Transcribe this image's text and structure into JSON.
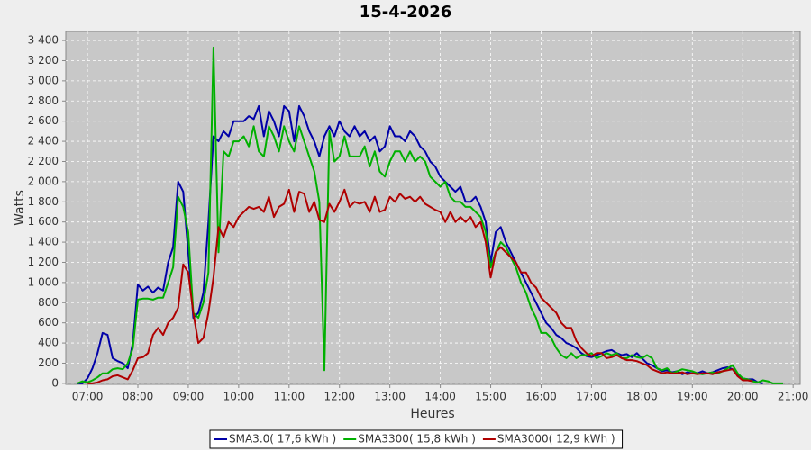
{
  "chart_data": {
    "type": "line",
    "title": "15-4-2026",
    "x_label": "Heures",
    "y_label": "Watts",
    "x": [
      6.8,
      6.9,
      7,
      7.1,
      7.2,
      7.3,
      7.4,
      7.5,
      7.6,
      7.7,
      7.8,
      7.9,
      8,
      8.1,
      8.2,
      8.3,
      8.4,
      8.5,
      8.6,
      8.7,
      8.8,
      8.9,
      9,
      9.1,
      9.2,
      9.3,
      9.4,
      9.5,
      9.6,
      9.7,
      9.8,
      9.9,
      10,
      10.1,
      10.2,
      10.3,
      10.4,
      10.5,
      10.6,
      10.7,
      10.8,
      10.9,
      11,
      11.1,
      11.2,
      11.3,
      11.4,
      11.5,
      11.6,
      11.7,
      11.8,
      11.9,
      12,
      12.1,
      12.2,
      12.3,
      12.4,
      12.5,
      12.6,
      12.7,
      12.8,
      12.9,
      13,
      13.1,
      13.2,
      13.3,
      13.4,
      13.5,
      13.6,
      13.7,
      13.8,
      13.9,
      14,
      14.1,
      14.2,
      14.3,
      14.4,
      14.5,
      14.6,
      14.7,
      14.8,
      14.9,
      15,
      15.1,
      15.2,
      15.3,
      15.4,
      15.5,
      15.6,
      15.7,
      15.8,
      15.9,
      16,
      16.1,
      16.2,
      16.3,
      16.4,
      16.5,
      16.6,
      16.7,
      16.8,
      16.9,
      17,
      17.1,
      17.2,
      17.3,
      17.4,
      17.5,
      17.6,
      17.7,
      17.8,
      17.9,
      18,
      18.1,
      18.2,
      18.3,
      18.4,
      18.5,
      18.6,
      18.7,
      18.8,
      18.9,
      19,
      19.1,
      19.2,
      19.3,
      19.4,
      19.5,
      19.6,
      19.7,
      19.8,
      19.9,
      20,
      20.1,
      20.2,
      20.3,
      20.4,
      20.5,
      20.6,
      20.7,
      20.8
    ],
    "series": [
      {
        "name": "SMA3.0( 17,6 kWh )",
        "color": "#0000a8",
        "values": [
          0,
          0,
          50,
          150,
          300,
          500,
          480,
          250,
          220,
          200,
          150,
          400,
          980,
          920,
          960,
          900,
          950,
          920,
          1200,
          1350,
          2000,
          1900,
          1300,
          650,
          700,
          900,
          1600,
          2450,
          2400,
          2500,
          2450,
          2600,
          2600,
          2600,
          2650,
          2620,
          2750,
          2450,
          2700,
          2600,
          2450,
          2750,
          2700,
          2400,
          2750,
          2650,
          2500,
          2400,
          2250,
          2450,
          2550,
          2450,
          2600,
          2500,
          2450,
          2550,
          2450,
          2500,
          2400,
          2450,
          2300,
          2350,
          2550,
          2450,
          2450,
          2400,
          2500,
          2450,
          2350,
          2300,
          2200,
          2150,
          2050,
          2000,
          1950,
          1900,
          1950,
          1800,
          1800,
          1850,
          1750,
          1600,
          1200,
          1500,
          1550,
          1400,
          1300,
          1200,
          1100,
          1000,
          900,
          800,
          700,
          600,
          550,
          480,
          450,
          400,
          380,
          350,
          300,
          270,
          260,
          280,
          300,
          320,
          330,
          300,
          280,
          290,
          260,
          300,
          250,
          200,
          180,
          150,
          120,
          130,
          110,
          120,
          90,
          110,
          100,
          100,
          120,
          100,
          110,
          130,
          150,
          160,
          140,
          80,
          50,
          40,
          40,
          10,
          0,
          null,
          null,
          null,
          null
        ]
      },
      {
        "name": "SMA3300( 15,8 kWh )",
        "color": "#00b000",
        "values": [
          0,
          20,
          10,
          30,
          60,
          100,
          100,
          140,
          150,
          140,
          200,
          350,
          830,
          840,
          840,
          830,
          850,
          850,
          1000,
          1150,
          1850,
          1750,
          1500,
          700,
          650,
          800,
          1100,
          3330,
          1300,
          2300,
          2250,
          2400,
          2400,
          2450,
          2350,
          2550,
          2300,
          2250,
          2550,
          2450,
          2300,
          2550,
          2400,
          2300,
          2550,
          2400,
          2250,
          2100,
          1800,
          130,
          2500,
          2200,
          2250,
          2450,
          2250,
          2250,
          2250,
          2350,
          2150,
          2300,
          2100,
          2050,
          2200,
          2300,
          2300,
          2200,
          2300,
          2200,
          2250,
          2200,
          2050,
          2000,
          1950,
          2000,
          1850,
          1800,
          1800,
          1750,
          1750,
          1700,
          1650,
          1500,
          1150,
          1300,
          1400,
          1350,
          1250,
          1150,
          1000,
          900,
          750,
          650,
          500,
          500,
          450,
          350,
          280,
          250,
          300,
          250,
          280,
          280,
          300,
          250,
          270,
          300,
          280,
          300,
          250,
          250,
          280,
          260,
          250,
          280,
          250,
          150,
          130,
          150,
          100,
          120,
          140,
          130,
          120,
          100,
          90,
          100,
          110,
          100,
          120,
          150,
          180,
          100,
          50,
          40,
          20,
          10,
          30,
          20,
          0,
          0,
          0
        ]
      },
      {
        "name": "SMA3000( 12,9 kWh )",
        "color": "#b00000",
        "values": [
          null,
          null,
          0,
          0,
          10,
          30,
          40,
          70,
          80,
          60,
          40,
          130,
          250,
          260,
          300,
          480,
          550,
          480,
          600,
          650,
          750,
          1180,
          1100,
          700,
          400,
          450,
          700,
          1050,
          1550,
          1450,
          1600,
          1550,
          1650,
          1700,
          1750,
          1730,
          1750,
          1700,
          1850,
          1650,
          1750,
          1780,
          1920,
          1700,
          1900,
          1880,
          1700,
          1800,
          1620,
          1600,
          1780,
          1700,
          1800,
          1920,
          1750,
          1800,
          1780,
          1800,
          1700,
          1850,
          1700,
          1720,
          1850,
          1800,
          1880,
          1830,
          1850,
          1800,
          1850,
          1780,
          1750,
          1720,
          1700,
          1600,
          1700,
          1600,
          1650,
          1600,
          1650,
          1550,
          1600,
          1400,
          1050,
          1300,
          1350,
          1300,
          1250,
          1200,
          1100,
          1100,
          1000,
          950,
          850,
          800,
          750,
          700,
          600,
          550,
          550,
          420,
          350,
          300,
          270,
          300,
          300,
          250,
          260,
          280,
          250,
          230,
          230,
          220,
          200,
          180,
          140,
          120,
          100,
          110,
          100,
          100,
          110,
          90,
          100,
          90,
          100,
          100,
          90,
          110,
          120,
          130,
          140,
          70,
          30,
          30,
          20,
          null,
          null,
          null,
          null,
          null,
          null
        ]
      }
    ],
    "xlim": [
      6.57,
      21.14
    ],
    "xticks": [
      {
        "value": 7,
        "label": "07:00"
      },
      {
        "value": 8,
        "label": "08:00"
      },
      {
        "value": 9,
        "label": "09:00"
      },
      {
        "value": 10,
        "label": "10:00"
      },
      {
        "value": 11,
        "label": "11:00"
      },
      {
        "value": 12,
        "label": "12:00"
      },
      {
        "value": 13,
        "label": "13:00"
      },
      {
        "value": 14,
        "label": "14:00"
      },
      {
        "value": 15,
        "label": "15:00"
      },
      {
        "value": 16,
        "label": "16:00"
      },
      {
        "value": 17,
        "label": "17:00"
      },
      {
        "value": 18,
        "label": "18:00"
      },
      {
        "value": 19,
        "label": "19:00"
      },
      {
        "value": 20,
        "label": "20:00"
      },
      {
        "value": 21,
        "label": "21:00"
      }
    ],
    "ylim": [
      -10,
      3490
    ],
    "yticks": [
      0,
      200,
      400,
      600,
      800,
      {
        "value": 1000,
        "label": "1 000"
      },
      {
        "value": 1200,
        "label": "1 200"
      },
      {
        "value": 1400,
        "label": "1 400"
      },
      {
        "value": 1600,
        "label": "1 600"
      },
      {
        "value": 1800,
        "label": "1 800"
      },
      {
        "value": 2000,
        "label": "2 000"
      },
      {
        "value": 2200,
        "label": "2 200"
      },
      {
        "value": 2400,
        "label": "2 400"
      },
      {
        "value": 2600,
        "label": "2 600"
      },
      {
        "value": 2800,
        "label": "2 800"
      },
      {
        "value": 3000,
        "label": "3 000"
      },
      {
        "value": 3200,
        "label": "3 200"
      },
      {
        "value": 3400,
        "label": "3 400"
      }
    ],
    "grid": true,
    "legend": "bottom"
  }
}
